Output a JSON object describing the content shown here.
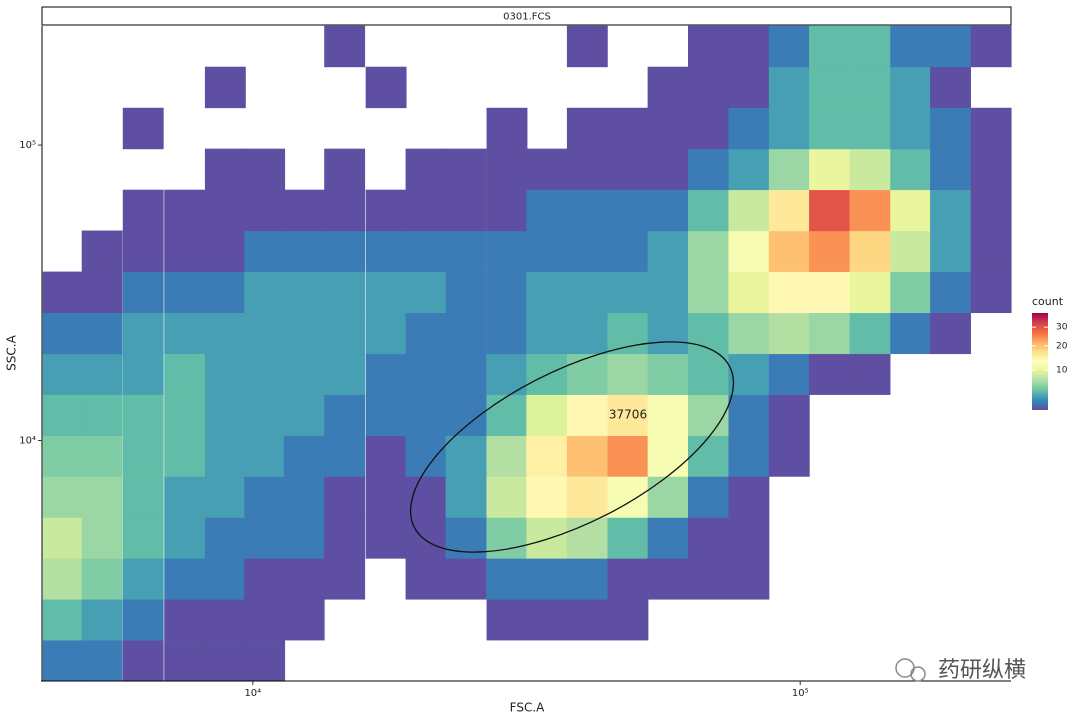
{
  "chart_data": {
    "type": "bin2d",
    "strip_title": "0301.FCS",
    "x_label": "FSC.A",
    "y_label": "SSC.A",
    "x_log": true,
    "y_log": true,
    "xlim": [
      4120,
      242700
    ],
    "ylim": [
      1535,
      252900
    ],
    "xticks": [
      {
        "value": 10000,
        "label": "10⁴"
      },
      {
        "value": 100000,
        "label": "10⁵"
      }
    ],
    "yticks": [
      {
        "value": 10000,
        "label": "10⁴"
      },
      {
        "value": 100000,
        "label": "10⁵"
      }
    ],
    "x": [
      4500,
      5300,
      6300,
      7500,
      8900,
      10500,
      12400,
      14700,
      17500,
      20700,
      24500,
      29100,
      34400,
      40800,
      48400,
      57300,
      67900,
      80500,
      95400,
      113000,
      134000,
      159000,
      188000,
      223000
    ],
    "y": [
      1800,
      2480,
      3410,
      4690,
      6450,
      8880,
      12200,
      16800,
      23100,
      31800,
      43800,
      60200,
      82900,
      114000,
      157000,
      216000
    ],
    "counts": [
      [
        2,
        2,
        1,
        1,
        1,
        1,
        null,
        null,
        null,
        null,
        null,
        null,
        null,
        null,
        null,
        null,
        null,
        null,
        null,
        null,
        null,
        null,
        null,
        null
      ],
      [
        4,
        3,
        2,
        1,
        1,
        1,
        1,
        null,
        null,
        null,
        null,
        1,
        1,
        1,
        1,
        null,
        null,
        null,
        null,
        null,
        null,
        null,
        null,
        null
      ],
      [
        7,
        5,
        3,
        2,
        2,
        1,
        1,
        1,
        null,
        1,
        1,
        2,
        2,
        2,
        1,
        1,
        1,
        1,
        null,
        null,
        null,
        null,
        null,
        null
      ],
      [
        8,
        6,
        4,
        3,
        2,
        2,
        2,
        1,
        1,
        1,
        2,
        5,
        8,
        7,
        4,
        2,
        1,
        1,
        null,
        null,
        null,
        null,
        null,
        null
      ],
      [
        6,
        6,
        4,
        3,
        3,
        2,
        2,
        1,
        1,
        1,
        3,
        8,
        14,
        16,
        12,
        6,
        2,
        1,
        null,
        null,
        null,
        null,
        null,
        null
      ],
      [
        5,
        5,
        4,
        4,
        3,
        3,
        2,
        2,
        1,
        2,
        3,
        7,
        15,
        20,
        24,
        12,
        4,
        2,
        1,
        null,
        null,
        null,
        null,
        null
      ],
      [
        4,
        4,
        4,
        4,
        3,
        3,
        3,
        2,
        2,
        2,
        2,
        4,
        9,
        14,
        16,
        12,
        6,
        2,
        1,
        null,
        null,
        null,
        null,
        null
      ],
      [
        3,
        3,
        3,
        4,
        3,
        3,
        3,
        3,
        2,
        2,
        2,
        3,
        4,
        5,
        6,
        5,
        4,
        3,
        2,
        1,
        1,
        null,
        null,
        null
      ],
      [
        2,
        2,
        3,
        3,
        3,
        3,
        3,
        3,
        3,
        2,
        2,
        2,
        3,
        3,
        4,
        3,
        4,
        6,
        7,
        6,
        4,
        2,
        1,
        null
      ],
      [
        1,
        1,
        2,
        2,
        2,
        3,
        3,
        3,
        3,
        3,
        2,
        2,
        3,
        3,
        3,
        3,
        6,
        10,
        14,
        14,
        10,
        5,
        2,
        1
      ],
      [
        null,
        1,
        1,
        1,
        1,
        2,
        2,
        2,
        2,
        2,
        2,
        2,
        2,
        2,
        2,
        3,
        6,
        12,
        20,
        24,
        18,
        8,
        3,
        1
      ],
      [
        null,
        null,
        1,
        1,
        1,
        1,
        1,
        1,
        1,
        1,
        1,
        1,
        2,
        2,
        2,
        2,
        4,
        8,
        16,
        30,
        24,
        10,
        3,
        1
      ],
      [
        null,
        null,
        null,
        null,
        1,
        1,
        null,
        1,
        null,
        1,
        1,
        1,
        1,
        1,
        1,
        1,
        2,
        3,
        6,
        10,
        8,
        4,
        2,
        1
      ],
      [
        null,
        null,
        1,
        null,
        null,
        null,
        null,
        null,
        null,
        null,
        null,
        1,
        null,
        1,
        1,
        1,
        1,
        2,
        3,
        4,
        4,
        3,
        2,
        1
      ],
      [
        null,
        null,
        null,
        null,
        1,
        null,
        null,
        null,
        1,
        null,
        null,
        null,
        null,
        null,
        null,
        1,
        1,
        1,
        3,
        4,
        4,
        3,
        1,
        null
      ],
      [
        null,
        null,
        null,
        null,
        null,
        null,
        null,
        1,
        null,
        null,
        null,
        null,
        null,
        1,
        null,
        null,
        1,
        1,
        2,
        4,
        4,
        2,
        2,
        1
      ]
    ],
    "legend_title": "count",
    "count_trans": "sqrt",
    "count_lim": [
      1,
      39
    ],
    "count_ticks": [
      10,
      20,
      30
    ],
    "colors": [
      "#5E4FA2",
      "#3288BD",
      "#66C2A5",
      "#ABDDA4",
      "#E6F598",
      "#FFFFBF",
      "#FEE08B",
      "#FDAE61",
      "#F46D43",
      "#D53E4F",
      "#9E0142"
    ],
    "gate_count": 37706,
    "watermark": "药研纵横"
  }
}
